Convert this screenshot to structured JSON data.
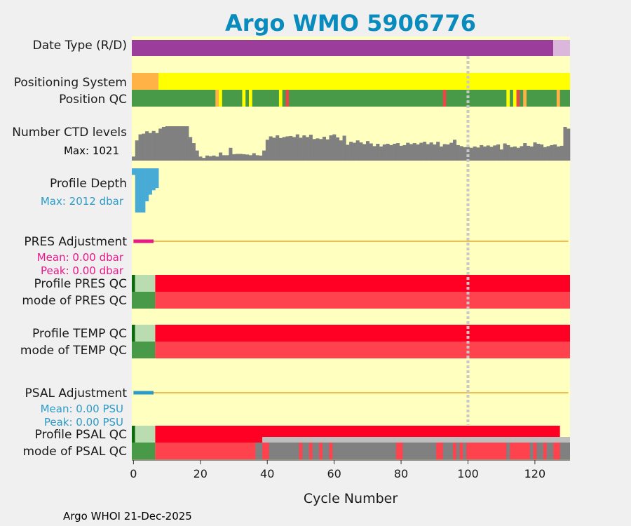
{
  "chart_data": {
    "type": "bar",
    "title": "Argo WMO 5906776",
    "xlabel": "Cycle Number",
    "xlim": [
      -0.5,
      130.5
    ],
    "x_ticks": [
      0,
      20,
      40,
      60,
      80,
      100,
      120
    ],
    "reference_line_cycle": 100,
    "footer": "Argo WHOI 21-Dec-2025",
    "rows": {
      "date_type": {
        "label": "Date Type (R/D)",
        "segments": [
          {
            "start": -0.5,
            "end": 125.5,
            "color": "#9b3d9b",
            "meaning": "D"
          },
          {
            "start": 125.5,
            "end": 130.5,
            "color": "#dcb7dc",
            "meaning": "R"
          }
        ]
      },
      "positioning_system": {
        "label": "Positioning System",
        "segments": [
          {
            "start": -0.5,
            "end": 7.5,
            "color": "#ffb347"
          },
          {
            "start": 7.5,
            "end": 130.5,
            "color": "#ffff00"
          }
        ]
      },
      "position_qc": {
        "label": "Position QC",
        "base_color": "#489a48",
        "flags": [
          {
            "cycle": 25,
            "color": "#ffb347"
          },
          {
            "cycle": 26,
            "color": "#ffff00"
          },
          {
            "cycle": 33,
            "color": "#ffff00"
          },
          {
            "cycle": 35,
            "color": "#ffff00"
          },
          {
            "cycle": 44,
            "color": "#ffff00"
          },
          {
            "cycle": 46,
            "color": "#e84848"
          },
          {
            "cycle": 93,
            "color": "#e84848"
          },
          {
            "cycle": 112,
            "color": "#ffff00"
          },
          {
            "cycle": 114,
            "color": "#ffff00"
          },
          {
            "cycle": 115,
            "color": "#e84848"
          },
          {
            "cycle": 117,
            "color": "#ffb347"
          },
          {
            "cycle": 127,
            "color": "#ffb347"
          }
        ]
      },
      "ctd_levels": {
        "label": "Number CTD levels",
        "max_label": "Max: 1021",
        "max": 1021,
        "values": [
          120,
          600,
          780,
          800,
          870,
          820,
          880,
          820,
          950,
          1000,
          1021,
          1021,
          1021,
          1021,
          1021,
          1021,
          1021,
          700,
          520,
          300,
          120,
          80,
          150,
          130,
          150,
          120,
          240,
          160,
          160,
          380,
          190,
          200,
          200,
          190,
          180,
          160,
          220,
          160,
          150,
          300,
          620,
          720,
          680,
          750,
          670,
          700,
          720,
          730,
          700,
          780,
          680,
          750,
          700,
          770,
          640,
          660,
          640,
          710,
          630,
          750,
          780,
          690,
          600,
          740,
          470,
          560,
          530,
          600,
          540,
          490,
          580,
          510,
          430,
          500,
          420,
          480,
          500,
          460,
          500,
          520,
          440,
          460,
          530,
          490,
          520,
          480,
          530,
          560,
          490,
          540,
          480,
          560,
          420,
          490,
          480,
          530,
          620,
          460,
          430,
          400,
          410,
          380,
          420,
          390,
          460,
          420,
          450,
          410,
          450,
          480,
          330,
          510,
          460,
          400,
          420,
          380,
          430,
          520,
          440,
          420,
          540,
          500,
          480,
          400,
          430,
          460,
          480,
          420,
          440,
          1000,
          950
        ]
      },
      "profile_depth": {
        "label": "Profile Depth",
        "max_label": "Max: 2012 dbar",
        "max": 2012,
        "values": [
          300,
          2012,
          2012,
          2012,
          1500,
          1200,
          1000,
          900
        ]
      },
      "pres_adjustment": {
        "label": "PRES Adjustment",
        "mean_label": "Mean: 0.00 dbar",
        "peak_label": "Peak: 0.00 dbar",
        "marker_cycles": [
          0,
          6
        ],
        "line_cycles": [
          6,
          130
        ]
      },
      "profile_pres_qc": {
        "label": "Profile PRES QC",
        "segments": [
          {
            "start": -0.5,
            "end": 0.5,
            "color": "#0d6a0d"
          },
          {
            "start": 0.5,
            "end": 6.5,
            "color": "#b9dcb1"
          },
          {
            "start": 6.5,
            "end": 130.5,
            "color": "#ff0024"
          }
        ]
      },
      "mode_pres_qc": {
        "label": "mode of PRES QC",
        "segments": [
          {
            "start": -0.5,
            "end": 6.5,
            "color": "#489a48"
          },
          {
            "start": 6.5,
            "end": 130.5,
            "color": "#fe434e"
          }
        ]
      },
      "profile_temp_qc": {
        "label": "Profile TEMP QC",
        "segments": [
          {
            "start": -0.5,
            "end": 0.5,
            "color": "#0d6a0d"
          },
          {
            "start": 0.5,
            "end": 6.5,
            "color": "#b9dcb1"
          },
          {
            "start": 6.5,
            "end": 130.5,
            "color": "#ff0024"
          }
        ]
      },
      "mode_temp_qc": {
        "label": "mode of TEMP QC",
        "segments": [
          {
            "start": -0.5,
            "end": 6.5,
            "color": "#489a48"
          },
          {
            "start": 6.5,
            "end": 130.5,
            "color": "#fe434e"
          }
        ]
      },
      "psal_adjustment": {
        "label": "PSAL Adjustment",
        "mean_label": "Mean: 0.00 PSU",
        "peak_label": "Peak: 0.00 PSU",
        "marker_cycles": [
          0,
          6
        ],
        "line_cycles": [
          6,
          130
        ]
      },
      "profile_psal_qc": {
        "label": "Profile PSAL QC",
        "segments": [
          {
            "start": -0.5,
            "end": 0.5,
            "color": "#0d6a0d"
          },
          {
            "start": 0.5,
            "end": 6.5,
            "color": "#b9dcb1"
          },
          {
            "start": 6.5,
            "end": 127.5,
            "color": "#ff0024"
          },
          {
            "start": 38.5,
            "end": 130.5,
            "color": "#bebebe"
          }
        ]
      },
      "mode_psal_qc": {
        "label": "mode of PSAL QC",
        "segments": [
          {
            "start": -0.5,
            "end": 6.5,
            "color": "#489a48"
          },
          {
            "start": 6.5,
            "end": 36.5,
            "color": "#fe434e"
          },
          {
            "start": 36.5,
            "end": 130.5,
            "color": "#808080"
          },
          {
            "start": 38.5,
            "end": 40.5,
            "color": "#fe434e"
          },
          {
            "start": 49.5,
            "end": 50.5,
            "color": "#fe434e"
          },
          {
            "start": 52.5,
            "end": 53.5,
            "color": "#fe434e"
          },
          {
            "start": 55.5,
            "end": 56.5,
            "color": "#fe434e"
          },
          {
            "start": 58.5,
            "end": 59.5,
            "color": "#fe434e"
          },
          {
            "start": 78.5,
            "end": 80.5,
            "color": "#fe434e"
          },
          {
            "start": 90.5,
            "end": 92.5,
            "color": "#fe434e"
          },
          {
            "start": 95.5,
            "end": 96.5,
            "color": "#fe434e"
          },
          {
            "start": 97.5,
            "end": 98.5,
            "color": "#fe434e"
          },
          {
            "start": 99.5,
            "end": 111.5,
            "color": "#fe434e"
          },
          {
            "start": 112.5,
            "end": 113.5,
            "color": "#fe434e"
          },
          {
            "start": 113.5,
            "end": 118.5,
            "color": "#fe434e"
          },
          {
            "start": 119.5,
            "end": 120.5,
            "color": "#fe434e"
          },
          {
            "start": 122.5,
            "end": 123.5,
            "color": "#fe434e"
          },
          {
            "start": 125.5,
            "end": 127.5,
            "color": "#fe434e"
          }
        ]
      }
    }
  },
  "colors": {
    "plot_background": "#ffffc0",
    "title": "#0a8bbd",
    "pres_accent": "#e8178a",
    "psal_accent": "#2a9bc9",
    "ctd_bars": "#808080",
    "depth_bars": "#47abd6",
    "adjust_line": "#f5bc4c",
    "ref_line": "#c8c8c8"
  }
}
